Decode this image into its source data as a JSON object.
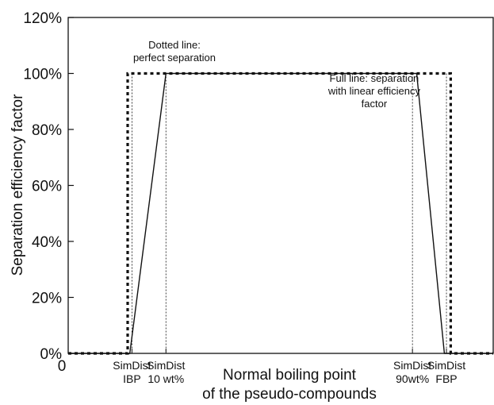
{
  "chart_data": {
    "type": "line",
    "xlabel": [
      "Normal boiling point",
      "of the pseudo-compounds"
    ],
    "ylabel": "Separation efficiency factor",
    "ylim": [
      0,
      120
    ],
    "yticks": [
      0,
      20,
      40,
      60,
      80,
      100,
      120
    ],
    "ytick_format": "%",
    "xlim": [
      0,
      100
    ],
    "x_origin_label": "0",
    "x_markers": [
      {
        "x": 15,
        "lines": [
          "SimDist",
          "IBP"
        ]
      },
      {
        "x": 23,
        "lines": [
          "SimDist",
          "10 wt%"
        ]
      },
      {
        "x": 81,
        "lines": [
          "SimDist",
          "90wt%"
        ]
      },
      {
        "x": 89,
        "lines": [
          "SimDist",
          "FBP"
        ]
      }
    ],
    "series": [
      {
        "style": "dotted",
        "points": [
          [
            0,
            0
          ],
          [
            14,
            0
          ],
          [
            14,
            100
          ],
          [
            90,
            100
          ],
          [
            90,
            0
          ],
          [
            100,
            0
          ]
        ]
      },
      {
        "style": "solid",
        "points": [
          [
            0,
            0
          ],
          [
            14.5,
            0
          ],
          [
            23,
            100
          ],
          [
            82,
            100
          ],
          [
            88.5,
            0
          ],
          [
            100,
            0
          ]
        ]
      }
    ],
    "annotations": [
      {
        "x": 25,
        "y": 109,
        "lines": [
          "Dotted line:",
          "perfect separation"
        ]
      },
      {
        "x": 72,
        "y": 97,
        "lines": [
          "Full line: separation",
          "with linear efficiency",
          "factor"
        ]
      }
    ]
  }
}
